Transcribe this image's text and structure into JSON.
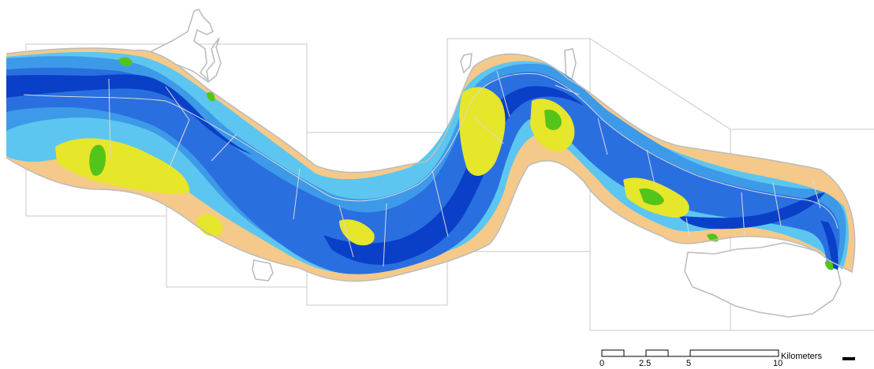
{
  "map": {
    "colors": {
      "deep": "#0a40c8",
      "mid": "#2a6fe0",
      "channel": "#3d9ae8",
      "shallow": "#5cc6f0",
      "flat": "#f5c98a",
      "shoal": "#e6e62a",
      "marsh": "#52c41a",
      "outline": "#bdbdbd",
      "frame": "#c8c8c8"
    },
    "scale_bar": {
      "ticks": [
        "0",
        "2.5",
        "5",
        "10"
      ],
      "unit": "Kilometers"
    }
  }
}
